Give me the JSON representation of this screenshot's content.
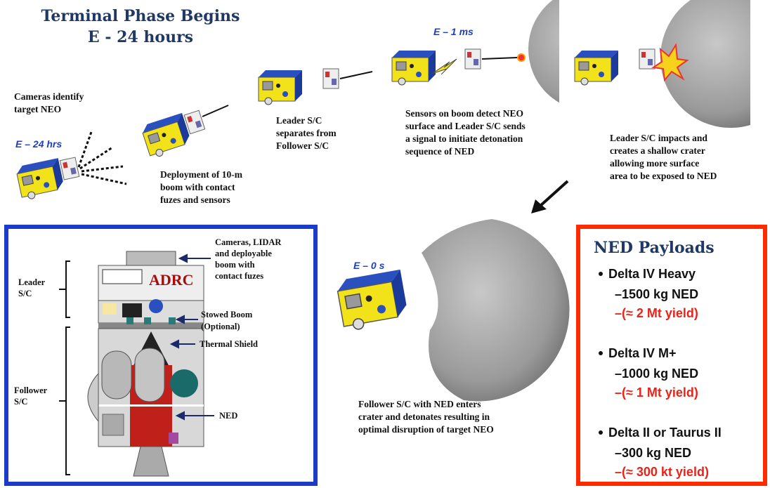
{
  "title": [
    "Terminal Phase Begins",
    "E - 24 hours"
  ],
  "times": [
    "E – 24 hrs",
    "E – 1 ms",
    "E – 0 s"
  ],
  "steps": [
    {
      "caption": [
        "Cameras identify",
        "target NEO"
      ]
    },
    {
      "caption": [
        "Deployment of 10-m",
        "boom with contact",
        "fuzes and sensors"
      ]
    },
    {
      "caption": [
        "Leader S/C",
        "separates from",
        "Follower S/C"
      ]
    },
    {
      "caption": [
        "Sensors on boom detect NEO",
        "surface and Leader S/C sends",
        "a signal to initiate detonation",
        "sequence of NED"
      ]
    },
    {
      "caption": [
        "Leader S/C impacts and",
        "creates a shallow crater",
        "allowing more surface",
        "area to be exposed to NED"
      ]
    },
    {
      "caption": [
        "Follower S/C with NED enters",
        "crater and detonates resulting in",
        "optimal disruption of target NEO"
      ]
    }
  ],
  "configuration": {
    "leader": [
      "Leader",
      "S/C"
    ],
    "follower": [
      "Follower",
      "S/C"
    ],
    "sensors": [
      "Cameras, LIDAR",
      "and deployable",
      "boom with",
      "contact fuzes"
    ],
    "boom": [
      "Stowed Boom",
      "(Optional)"
    ],
    "shield": "Thermal Shield",
    "ned": "NED",
    "logo": "ADRC"
  },
  "payloads": {
    "title": "NED Payloads",
    "items": [
      {
        "vehicle": "Delta IV Heavy",
        "mass": "–1500 kg NED",
        "yield": "–(≈ 2 Mt yield)"
      },
      {
        "vehicle": "Delta IV M+",
        "mass": "–1000 kg NED",
        "yield": "–(≈ 1 Mt yield)"
      },
      {
        "vehicle": "Delta II or Taurus II",
        "mass": "–300 kg NED",
        "yield": "–(≈ 300 kt yield)"
      }
    ]
  }
}
